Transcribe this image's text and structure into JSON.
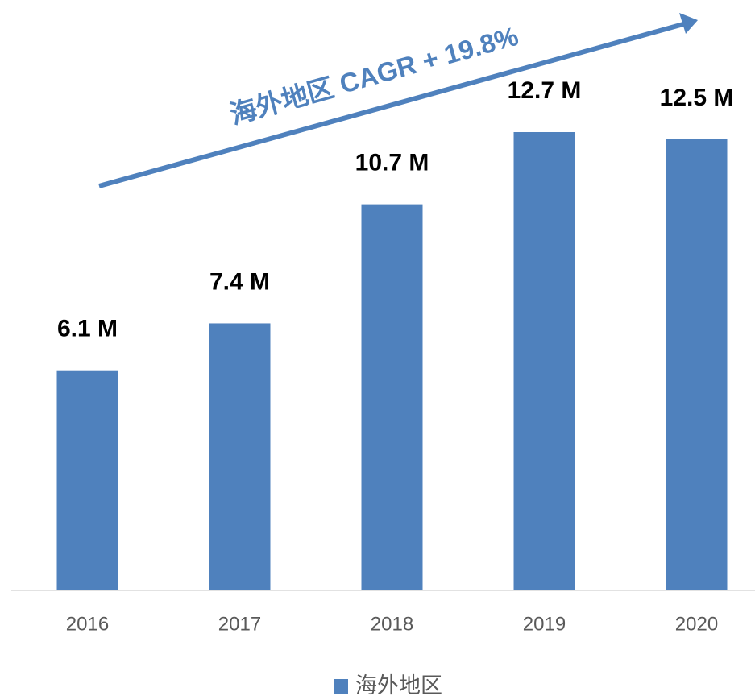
{
  "chart_data": {
    "type": "bar",
    "annotation": "海外地区 CAGR + 19.8%",
    "categories": [
      "2016",
      "2017",
      "2018",
      "2019",
      "2020"
    ],
    "series": [
      {
        "name": "海外地区",
        "color": "#4f81bd",
        "values": [
          6.1,
          7.4,
          10.7,
          12.7,
          12.5
        ],
        "value_labels": [
          "6.1 M",
          "7.4 M",
          "10.7 M",
          "12.7 M",
          "12.5 M"
        ]
      }
    ],
    "legend": "bottom"
  }
}
